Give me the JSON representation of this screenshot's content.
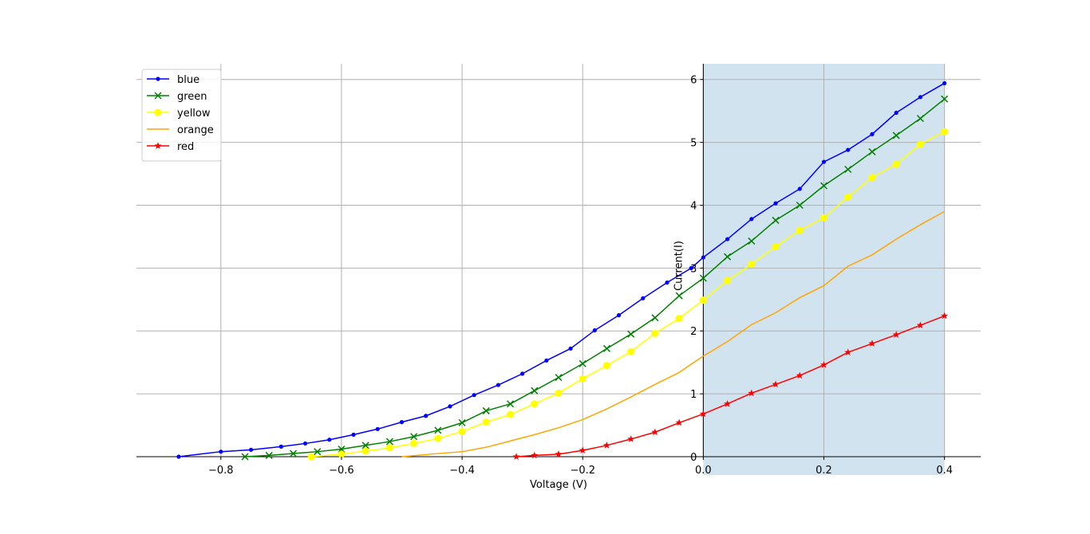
{
  "chart_data": {
    "type": "line",
    "title": "",
    "xlabel": "Voltage (V)",
    "ylabel": "Current(I)",
    "xlim": [
      -0.94,
      0.46
    ],
    "ylim": [
      0,
      6.25
    ],
    "xticks": [
      -0.8,
      -0.6,
      -0.4,
      -0.2,
      0.0,
      0.2,
      0.4
    ],
    "xtick_labels": [
      "−0.8",
      "−0.6",
      "−0.4",
      "−0.2",
      "0.0",
      "0.2",
      "0.4"
    ],
    "yticks": [
      0,
      1,
      2,
      3,
      4,
      5,
      6
    ],
    "ytick_labels": [
      "0",
      "1",
      "2",
      "3",
      "4",
      "5",
      "6"
    ],
    "grid": true,
    "legend_position": "top-left",
    "shaded_region": {
      "x_start": 0.0,
      "x_end": 0.4,
      "color": "#d2e3f0"
    },
    "series": [
      {
        "name": "blue",
        "color": "#0000ff",
        "marker": "dot",
        "x": [
          -0.87,
          -0.8,
          -0.75,
          -0.7,
          -0.66,
          -0.62,
          -0.58,
          -0.54,
          -0.5,
          -0.46,
          -0.42,
          -0.38,
          -0.34,
          -0.3,
          -0.26,
          -0.22,
          -0.18,
          -0.14,
          -0.1,
          -0.06,
          -0.02,
          0.0,
          0.04,
          0.08,
          0.12,
          0.16,
          0.2,
          0.24,
          0.28,
          0.32,
          0.36,
          0.4
        ],
        "y": [
          0.0,
          0.08,
          0.11,
          0.16,
          0.21,
          0.27,
          0.35,
          0.44,
          0.55,
          0.65,
          0.8,
          0.98,
          1.14,
          1.32,
          1.53,
          1.72,
          2.01,
          2.25,
          2.52,
          2.77,
          3.0,
          3.17,
          3.46,
          3.78,
          4.03,
          4.26,
          4.69,
          4.88,
          5.13,
          5.47,
          5.72,
          5.94
        ]
      },
      {
        "name": "green",
        "color": "#008000",
        "marker": "x",
        "x": [
          -0.76,
          -0.72,
          -0.68,
          -0.64,
          -0.6,
          -0.56,
          -0.52,
          -0.48,
          -0.44,
          -0.4,
          -0.36,
          -0.32,
          -0.28,
          -0.24,
          -0.2,
          -0.16,
          -0.12,
          -0.08,
          -0.04,
          0.0,
          0.04,
          0.08,
          0.12,
          0.16,
          0.2,
          0.24,
          0.28,
          0.32,
          0.36,
          0.4
        ],
        "y": [
          0.0,
          0.02,
          0.05,
          0.08,
          0.12,
          0.18,
          0.24,
          0.32,
          0.42,
          0.54,
          0.73,
          0.84,
          1.05,
          1.26,
          1.48,
          1.72,
          1.95,
          2.21,
          2.56,
          2.84,
          3.18,
          3.43,
          3.76,
          4.0,
          4.31,
          4.57,
          4.85,
          5.11,
          5.38,
          5.69
        ]
      },
      {
        "name": "yellow",
        "color": "#ffff00",
        "marker": "circle",
        "x": [
          -0.65,
          -0.6,
          -0.56,
          -0.52,
          -0.48,
          -0.44,
          -0.4,
          -0.36,
          -0.32,
          -0.28,
          -0.24,
          -0.2,
          -0.16,
          -0.12,
          -0.08,
          -0.04,
          0.0,
          0.04,
          0.08,
          0.12,
          0.16,
          0.2,
          0.24,
          0.28,
          0.32,
          0.36,
          0.4
        ],
        "y": [
          0.0,
          0.04,
          0.09,
          0.14,
          0.21,
          0.29,
          0.4,
          0.55,
          0.67,
          0.84,
          1.01,
          1.24,
          1.45,
          1.67,
          1.96,
          2.2,
          2.49,
          2.8,
          3.06,
          3.34,
          3.6,
          3.8,
          4.13,
          4.44,
          4.65,
          4.97,
          5.17
        ]
      },
      {
        "name": "orange",
        "color": "#ffa500",
        "marker": "none",
        "x": [
          -0.5,
          -0.44,
          -0.4,
          -0.36,
          -0.32,
          -0.28,
          -0.24,
          -0.2,
          -0.16,
          -0.12,
          -0.08,
          -0.04,
          0.0,
          0.04,
          0.08,
          0.12,
          0.16,
          0.2,
          0.24,
          0.28,
          0.32,
          0.36,
          0.4
        ],
        "y": [
          0.0,
          0.05,
          0.08,
          0.15,
          0.25,
          0.35,
          0.46,
          0.59,
          0.76,
          0.95,
          1.15,
          1.34,
          1.6,
          1.83,
          2.1,
          2.29,
          2.53,
          2.72,
          3.03,
          3.21,
          3.46,
          3.69,
          3.9
        ]
      },
      {
        "name": "red",
        "color": "#ff0000",
        "marker": "star",
        "x": [
          -0.31,
          -0.28,
          -0.24,
          -0.2,
          -0.16,
          -0.12,
          -0.08,
          -0.04,
          0.0,
          0.04,
          0.08,
          0.12,
          0.16,
          0.2,
          0.24,
          0.28,
          0.32,
          0.36,
          0.4
        ],
        "y": [
          0.0,
          0.02,
          0.04,
          0.1,
          0.18,
          0.28,
          0.39,
          0.54,
          0.68,
          0.84,
          1.01,
          1.15,
          1.29,
          1.46,
          1.66,
          1.8,
          1.94,
          2.09,
          2.24
        ]
      }
    ]
  }
}
